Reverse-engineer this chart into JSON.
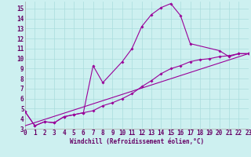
{
  "background_color": "#cdf0f0",
  "grid_color": "#aadddd",
  "line_color": "#990099",
  "xlabel": "Windchill (Refroidissement éolien,°C)",
  "xlabel_color": "#660066",
  "tick_color": "#660066",
  "xlim": [
    0,
    23
  ],
  "ylim": [
    3,
    15.7
  ],
  "yticks": [
    3,
    4,
    5,
    6,
    7,
    8,
    9,
    10,
    11,
    12,
    13,
    14,
    15
  ],
  "xticks": [
    0,
    1,
    2,
    3,
    4,
    5,
    6,
    7,
    8,
    9,
    10,
    11,
    12,
    13,
    14,
    15,
    16,
    17,
    18,
    19,
    20,
    21,
    22,
    23
  ],
  "series1_x": [
    0,
    1,
    2,
    3,
    4,
    5,
    6,
    7,
    8,
    10,
    11,
    12,
    13,
    14,
    15,
    16,
    17,
    20,
    21,
    22,
    23
  ],
  "series1_y": [
    4.7,
    3.3,
    3.7,
    3.6,
    4.2,
    4.4,
    4.6,
    9.3,
    7.6,
    9.7,
    11.0,
    13.2,
    14.4,
    15.1,
    15.5,
    14.3,
    11.5,
    10.8,
    10.2,
    10.5,
    10.5
  ],
  "series2_x": [
    0,
    1,
    2,
    3,
    4,
    5,
    6,
    7,
    8,
    9,
    10,
    11,
    12,
    13,
    14,
    15,
    16,
    17,
    18,
    19,
    20,
    21,
    22,
    23
  ],
  "series2_y": [
    4.7,
    3.3,
    3.7,
    3.6,
    4.2,
    4.4,
    4.6,
    4.8,
    5.3,
    5.6,
    6.0,
    6.5,
    7.2,
    7.8,
    8.5,
    9.0,
    9.3,
    9.7,
    9.9,
    10.0,
    10.2,
    10.3,
    10.5,
    10.5
  ],
  "series3_x": [
    0,
    23
  ],
  "series3_y": [
    3.3,
    10.5
  ],
  "marker": "D",
  "markersize": 1.8,
  "linewidth": 0.8,
  "tick_fontsize": 5.5,
  "xlabel_fontsize": 5.5
}
